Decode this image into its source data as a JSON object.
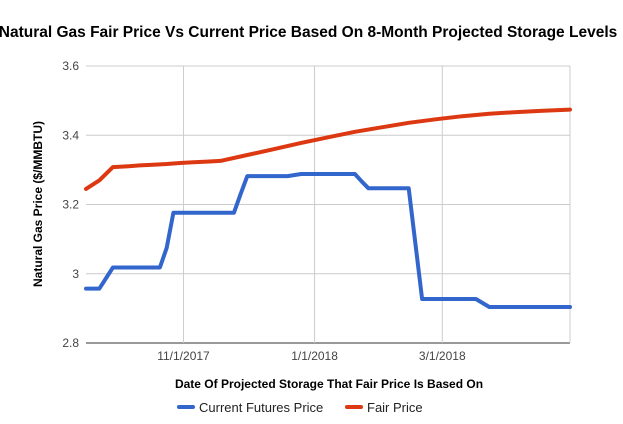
{
  "chart_data": {
    "type": "line",
    "title": "Natural Gas Fair Price Vs Current Price Based On 8-Month Projected Storage Levels",
    "xlabel": "Date Of Projected Storage That Fair Price Is Based On",
    "ylabel": "Natural Gas Price ($/MMBTU)",
    "ylim": [
      2.8,
      3.6
    ],
    "yticks": [
      2.8,
      3.0,
      3.2,
      3.4,
      3.6
    ],
    "ytick_labels": [
      "2.8",
      "3",
      "3.2",
      "3.4",
      "3.6"
    ],
    "xlim": [
      0,
      72
    ],
    "xtick_positions": [
      14.5,
      34.0,
      53.0
    ],
    "xtick_labels": [
      "11/1/2017",
      "1/1/2018",
      "3/1/2018"
    ],
    "x_gridlines": [
      14.5,
      34.0,
      53.0,
      72.0
    ],
    "legend_position": "bottom",
    "series": [
      {
        "name": "Current Futures Price",
        "color": "#3366cc",
        "x": [
          0,
          2,
          4,
          6,
          8,
          10,
          11,
          12,
          13,
          14,
          16,
          18,
          20,
          22,
          23,
          24,
          26,
          28,
          30,
          32,
          34,
          36,
          38,
          40,
          41,
          42,
          44,
          46,
          47,
          48,
          50,
          52,
          54,
          56,
          58,
          60,
          62,
          64,
          66,
          68,
          70,
          72
        ],
        "values": [
          2.957,
          2.957,
          3.018,
          3.018,
          3.018,
          3.018,
          3.018,
          3.075,
          3.176,
          3.176,
          3.176,
          3.176,
          3.176,
          3.176,
          3.23,
          3.282,
          3.282,
          3.282,
          3.282,
          3.288,
          3.288,
          3.288,
          3.288,
          3.288,
          3.267,
          3.247,
          3.247,
          3.247,
          3.247,
          3.247,
          2.927,
          2.927,
          2.927,
          2.927,
          2.927,
          2.904,
          2.904,
          2.904,
          2.904,
          2.904,
          2.904,
          2.904
        ]
      },
      {
        "name": "Fair Price",
        "color": "#dc3912",
        "x": [
          0,
          2,
          4,
          6,
          8,
          10,
          12,
          14,
          16,
          18,
          20,
          24,
          28,
          32,
          36,
          40,
          44,
          48,
          52,
          56,
          60,
          64,
          68,
          72
        ],
        "values": [
          3.245,
          3.27,
          3.308,
          3.31,
          3.313,
          3.315,
          3.317,
          3.32,
          3.322,
          3.324,
          3.326,
          3.343,
          3.36,
          3.378,
          3.394,
          3.41,
          3.423,
          3.436,
          3.446,
          3.455,
          3.462,
          3.467,
          3.471,
          3.474
        ]
      }
    ]
  }
}
